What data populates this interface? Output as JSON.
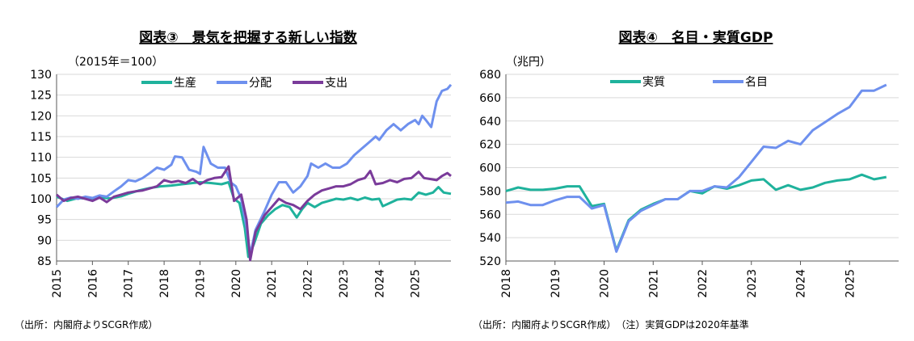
{
  "chart_data": [
    {
      "type": "line",
      "title": "図表③　景気を把握する新しい指数",
      "unit_label": "（2015年＝100）",
      "ylim": [
        85,
        130
      ],
      "yticks": [
        85,
        90,
        95,
        100,
        105,
        110,
        115,
        120,
        125,
        130
      ],
      "xlim": [
        2015.0,
        2026.0
      ],
      "xticks": [
        "2015",
        "2016",
        "2017",
        "2018",
        "2019",
        "2020",
        "2021",
        "2022",
        "2023",
        "2024",
        "2025"
      ],
      "grid": "horizontal",
      "legend_position": "top-center",
      "source": "（出所：内閣府よりSCGR作成）",
      "series": [
        {
          "name": "生産",
          "color": "#1fb29c",
          "points": [
            [
              2015.0,
              100.5
            ],
            [
              2015.3,
              99.5
            ],
            [
              2015.6,
              100.2
            ],
            [
              2015.9,
              100.0
            ],
            [
              2016.2,
              100.3
            ],
            [
              2016.5,
              100.1
            ],
            [
              2016.8,
              100.6
            ],
            [
              2017.0,
              101.2
            ],
            [
              2017.3,
              102.0
            ],
            [
              2017.6,
              102.6
            ],
            [
              2017.9,
              103.0
            ],
            [
              2018.2,
              103.2
            ],
            [
              2018.5,
              103.5
            ],
            [
              2018.8,
              103.8
            ],
            [
              2019.0,
              104.0
            ],
            [
              2019.3,
              103.8
            ],
            [
              2019.6,
              103.5
            ],
            [
              2019.8,
              104.0
            ],
            [
              2019.95,
              100.0
            ],
            [
              2020.1,
              99.0
            ],
            [
              2020.25,
              93.0
            ],
            [
              2020.35,
              86.0
            ],
            [
              2020.5,
              89.0
            ],
            [
              2020.7,
              94.0
            ],
            [
              2020.9,
              96.0
            ],
            [
              2021.1,
              97.5
            ],
            [
              2021.3,
              98.5
            ],
            [
              2021.5,
              98.0
            ],
            [
              2021.7,
              95.5
            ],
            [
              2021.85,
              97.5
            ],
            [
              2022.0,
              99.0
            ],
            [
              2022.2,
              98.0
            ],
            [
              2022.4,
              99.0
            ],
            [
              2022.6,
              99.5
            ],
            [
              2022.8,
              100.0
            ],
            [
              2023.0,
              99.8
            ],
            [
              2023.2,
              100.2
            ],
            [
              2023.4,
              99.7
            ],
            [
              2023.6,
              100.3
            ],
            [
              2023.8,
              99.8
            ],
            [
              2024.0,
              100.0
            ],
            [
              2024.1,
              98.2
            ],
            [
              2024.3,
              99.0
            ],
            [
              2024.5,
              99.8
            ],
            [
              2024.7,
              100.0
            ],
            [
              2024.9,
              99.8
            ],
            [
              2025.1,
              101.5
            ],
            [
              2025.3,
              101.0
            ],
            [
              2025.5,
              101.5
            ],
            [
              2025.65,
              102.8
            ],
            [
              2025.8,
              101.5
            ],
            [
              2026.0,
              101.2
            ]
          ]
        },
        {
          "name": "分配",
          "color": "#6e90ee",
          "points": [
            [
              2015.0,
              98.0
            ],
            [
              2015.2,
              99.8
            ],
            [
              2015.4,
              100.3
            ],
            [
              2015.6,
              100.0
            ],
            [
              2015.8,
              100.5
            ],
            [
              2016.0,
              100.2
            ],
            [
              2016.2,
              100.8
            ],
            [
              2016.4,
              100.5
            ],
            [
              2016.6,
              101.8
            ],
            [
              2016.8,
              103.0
            ],
            [
              2017.0,
              104.5
            ],
            [
              2017.2,
              104.2
            ],
            [
              2017.4,
              105.0
            ],
            [
              2017.6,
              106.2
            ],
            [
              2017.8,
              107.5
            ],
            [
              2018.0,
              107.0
            ],
            [
              2018.2,
              108.2
            ],
            [
              2018.3,
              110.2
            ],
            [
              2018.5,
              110.0
            ],
            [
              2018.7,
              107.0
            ],
            [
              2018.9,
              106.5
            ],
            [
              2019.0,
              106.0
            ],
            [
              2019.1,
              112.5
            ],
            [
              2019.3,
              108.5
            ],
            [
              2019.5,
              107.5
            ],
            [
              2019.7,
              107.5
            ],
            [
              2019.85,
              104.0
            ],
            [
              2020.0,
              103.0
            ],
            [
              2020.15,
              100.0
            ],
            [
              2020.3,
              93.0
            ],
            [
              2020.4,
              86.5
            ],
            [
              2020.55,
              92.5
            ],
            [
              2020.8,
              97.0
            ],
            [
              2021.0,
              101.0
            ],
            [
              2021.2,
              104.0
            ],
            [
              2021.4,
              104.0
            ],
            [
              2021.6,
              101.5
            ],
            [
              2021.8,
              103.0
            ],
            [
              2022.0,
              105.5
            ],
            [
              2022.1,
              108.5
            ],
            [
              2022.3,
              107.5
            ],
            [
              2022.5,
              108.5
            ],
            [
              2022.7,
              107.5
            ],
            [
              2022.9,
              107.5
            ],
            [
              2023.1,
              108.5
            ],
            [
              2023.3,
              110.5
            ],
            [
              2023.5,
              112.0
            ],
            [
              2023.7,
              113.5
            ],
            [
              2023.9,
              115.0
            ],
            [
              2024.0,
              114.2
            ],
            [
              2024.2,
              116.5
            ],
            [
              2024.4,
              118.0
            ],
            [
              2024.6,
              116.5
            ],
            [
              2024.8,
              118.0
            ],
            [
              2025.0,
              119.0
            ],
            [
              2025.1,
              118.0
            ],
            [
              2025.2,
              120.0
            ],
            [
              2025.3,
              119.0
            ],
            [
              2025.45,
              117.3
            ],
            [
              2025.6,
              123.5
            ],
            [
              2025.75,
              126.0
            ],
            [
              2025.9,
              126.5
            ],
            [
              2026.0,
              127.5
            ]
          ]
        },
        {
          "name": "支出",
          "color": "#7a3b9a",
          "points": [
            [
              2015.0,
              101.0
            ],
            [
              2015.2,
              99.5
            ],
            [
              2015.4,
              100.2
            ],
            [
              2015.6,
              100.5
            ],
            [
              2015.8,
              100.0
            ],
            [
              2016.0,
              99.5
            ],
            [
              2016.2,
              100.3
            ],
            [
              2016.4,
              99.2
            ],
            [
              2016.6,
              100.5
            ],
            [
              2016.8,
              101.0
            ],
            [
              2017.0,
              101.5
            ],
            [
              2017.2,
              101.8
            ],
            [
              2017.4,
              102.0
            ],
            [
              2017.6,
              102.5
            ],
            [
              2017.8,
              103.0
            ],
            [
              2018.0,
              104.5
            ],
            [
              2018.2,
              104.0
            ],
            [
              2018.4,
              104.3
            ],
            [
              2018.6,
              103.8
            ],
            [
              2018.8,
              104.8
            ],
            [
              2019.0,
              103.5
            ],
            [
              2019.2,
              104.5
            ],
            [
              2019.4,
              105.0
            ],
            [
              2019.6,
              105.2
            ],
            [
              2019.8,
              107.8
            ],
            [
              2019.95,
              99.5
            ],
            [
              2020.15,
              101.0
            ],
            [
              2020.3,
              95.0
            ],
            [
              2020.4,
              85.2
            ],
            [
              2020.55,
              92.0
            ],
            [
              2020.8,
              96.0
            ],
            [
              2021.0,
              98.0
            ],
            [
              2021.2,
              100.0
            ],
            [
              2021.4,
              99.0
            ],
            [
              2021.6,
              98.5
            ],
            [
              2021.8,
              97.5
            ],
            [
              2022.0,
              99.5
            ],
            [
              2022.2,
              101.0
            ],
            [
              2022.4,
              102.0
            ],
            [
              2022.6,
              102.5
            ],
            [
              2022.8,
              103.0
            ],
            [
              2023.0,
              103.0
            ],
            [
              2023.2,
              103.5
            ],
            [
              2023.4,
              104.5
            ],
            [
              2023.6,
              105.0
            ],
            [
              2023.75,
              106.7
            ],
            [
              2023.9,
              103.5
            ],
            [
              2024.1,
              103.8
            ],
            [
              2024.3,
              104.5
            ],
            [
              2024.5,
              104.0
            ],
            [
              2024.7,
              104.8
            ],
            [
              2024.9,
              105.0
            ],
            [
              2025.1,
              106.5
            ],
            [
              2025.25,
              105.0
            ],
            [
              2025.4,
              104.8
            ],
            [
              2025.6,
              104.5
            ],
            [
              2025.75,
              105.5
            ],
            [
              2025.9,
              106.2
            ],
            [
              2026.0,
              105.5
            ]
          ]
        }
      ]
    },
    {
      "type": "line",
      "title": "図表④　名目・実質GDP",
      "unit_label": "（兆円）",
      "ylim": [
        520,
        680
      ],
      "yticks": [
        520,
        540,
        560,
        580,
        600,
        620,
        640,
        660,
        680
      ],
      "xlim": [
        2018.0,
        2026.0
      ],
      "xticks": [
        "2018",
        "2019",
        "2020",
        "2021",
        "2022",
        "2023",
        "2024",
        "2025"
      ],
      "grid": "horizontal",
      "legend_position": "top-center",
      "source": "（出所：内閣府よりSCGR作成）　（注）実質GDPは2020年基準",
      "series": [
        {
          "name": "実質",
          "color": "#1fb29c",
          "points": [
            [
              2018.0,
              580
            ],
            [
              2018.25,
              583
            ],
            [
              2018.5,
              581
            ],
            [
              2018.75,
              581
            ],
            [
              2019.0,
              582
            ],
            [
              2019.25,
              584
            ],
            [
              2019.5,
              584
            ],
            [
              2019.75,
              567
            ],
            [
              2020.0,
              569
            ],
            [
              2020.25,
              529
            ],
            [
              2020.5,
              555
            ],
            [
              2020.75,
              564
            ],
            [
              2021.0,
              569
            ],
            [
              2021.25,
              573
            ],
            [
              2021.5,
              573
            ],
            [
              2021.75,
              580
            ],
            [
              2022.0,
              578
            ],
            [
              2022.25,
              584
            ],
            [
              2022.5,
              582
            ],
            [
              2022.75,
              585
            ],
            [
              2023.0,
              589
            ],
            [
              2023.25,
              590
            ],
            [
              2023.5,
              581
            ],
            [
              2023.75,
              585
            ],
            [
              2024.0,
              581
            ],
            [
              2024.25,
              583
            ],
            [
              2024.5,
              587
            ],
            [
              2024.75,
              589
            ],
            [
              2025.0,
              590
            ],
            [
              2025.25,
              594
            ],
            [
              2025.5,
              590
            ],
            [
              2025.75,
              592
            ]
          ]
        },
        {
          "name": "名目",
          "color": "#6e90ee",
          "points": [
            [
              2018.0,
              570
            ],
            [
              2018.25,
              571
            ],
            [
              2018.5,
              568
            ],
            [
              2018.75,
              568
            ],
            [
              2019.0,
              572
            ],
            [
              2019.25,
              575
            ],
            [
              2019.5,
              575
            ],
            [
              2019.75,
              565
            ],
            [
              2020.0,
              568
            ],
            [
              2020.25,
              528
            ],
            [
              2020.5,
              554
            ],
            [
              2020.75,
              563
            ],
            [
              2021.0,
              568
            ],
            [
              2021.25,
              573
            ],
            [
              2021.5,
              573
            ],
            [
              2021.75,
              580
            ],
            [
              2022.0,
              580
            ],
            [
              2022.25,
              584
            ],
            [
              2022.5,
              583
            ],
            [
              2022.75,
              592
            ],
            [
              2023.0,
              605
            ],
            [
              2023.25,
              618
            ],
            [
              2023.5,
              617
            ],
            [
              2023.75,
              623
            ],
            [
              2024.0,
              620
            ],
            [
              2024.25,
              632
            ],
            [
              2024.5,
              639
            ],
            [
              2024.75,
              646
            ],
            [
              2025.0,
              652
            ],
            [
              2025.25,
              666
            ],
            [
              2025.5,
              666
            ],
            [
              2025.75,
              671
            ]
          ]
        }
      ]
    }
  ]
}
